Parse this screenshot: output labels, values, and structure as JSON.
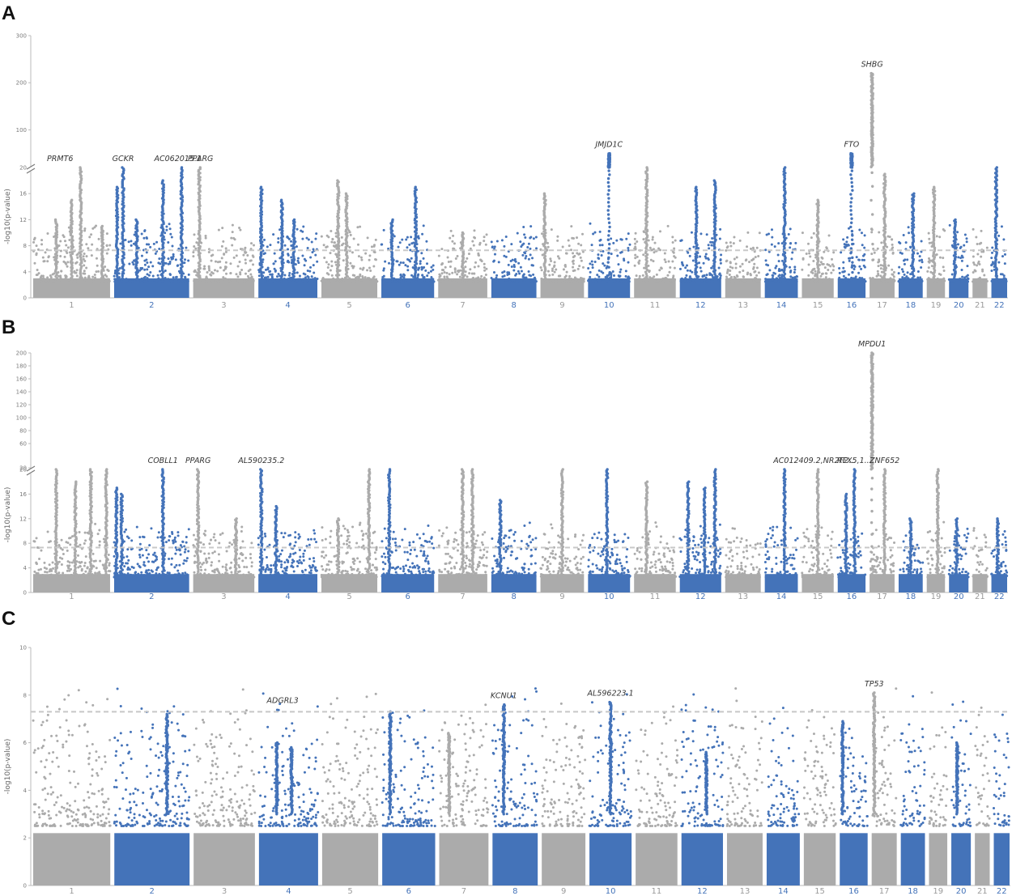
{
  "colors": {
    "blue": "#4473b9",
    "grey": "#ababab",
    "threshold": "#c8c8c8",
    "axis": "#bbbbbb"
  },
  "chart_data": [
    {
      "type": "scatter",
      "panel": "A",
      "ylabel": "-log10(p-value)",
      "axis_break": true,
      "yticks_lower": [
        "0",
        "4",
        "8",
        "12",
        "16",
        "20"
      ],
      "yticks_upper": [
        "100",
        "200",
        "300"
      ],
      "ylim_lower": [
        0,
        20
      ],
      "ylim_upper": [
        20,
        300
      ],
      "threshold": 7.3,
      "chromosomes": [
        "1",
        "2",
        "3",
        "4",
        "5",
        "6",
        "7",
        "8",
        "9",
        "10",
        "11",
        "12",
        "13",
        "14",
        "15",
        "16",
        "17",
        "18",
        "19",
        "20",
        "21",
        "22"
      ],
      "peaks": [
        {
          "chrom": 1,
          "pos": 0.3,
          "y": 12
        },
        {
          "chrom": 1,
          "pos": 0.5,
          "y": 15
        },
        {
          "chrom": 1,
          "pos": 0.62,
          "y": 20
        },
        {
          "chrom": 1,
          "pos": 0.9,
          "y": 11
        },
        {
          "chrom": 2,
          "pos": 0.04,
          "y": 17
        },
        {
          "chrom": 2,
          "pos": 0.12,
          "y": 20
        },
        {
          "chrom": 2,
          "pos": 0.3,
          "y": 12
        },
        {
          "chrom": 2,
          "pos": 0.65,
          "y": 18
        },
        {
          "chrom": 2,
          "pos": 0.9,
          "y": 20
        },
        {
          "chrom": 3,
          "pos": 0.1,
          "y": 20
        },
        {
          "chrom": 4,
          "pos": 0.05,
          "y": 17
        },
        {
          "chrom": 4,
          "pos": 0.4,
          "y": 15
        },
        {
          "chrom": 4,
          "pos": 0.6,
          "y": 12
        },
        {
          "chrom": 5,
          "pos": 0.3,
          "y": 18
        },
        {
          "chrom": 5,
          "pos": 0.45,
          "y": 16
        },
        {
          "chrom": 6,
          "pos": 0.2,
          "y": 12
        },
        {
          "chrom": 6,
          "pos": 0.65,
          "y": 17
        },
        {
          "chrom": 7,
          "pos": 0.5,
          "y": 10
        },
        {
          "chrom": 9,
          "pos": 0.1,
          "y": 16
        },
        {
          "chrom": 10,
          "pos": 0.5,
          "y": 50
        },
        {
          "chrom": 11,
          "pos": 0.3,
          "y": 20
        },
        {
          "chrom": 12,
          "pos": 0.4,
          "y": 17
        },
        {
          "chrom": 12,
          "pos": 0.85,
          "y": 18
        },
        {
          "chrom": 14,
          "pos": 0.6,
          "y": 20
        },
        {
          "chrom": 15,
          "pos": 0.5,
          "y": 15
        },
        {
          "chrom": 16,
          "pos": 0.5,
          "y": 50
        },
        {
          "chrom": 17,
          "pos": 0.1,
          "y": 220
        },
        {
          "chrom": 17,
          "pos": 0.6,
          "y": 19
        },
        {
          "chrom": 18,
          "pos": 0.6,
          "y": 16
        },
        {
          "chrom": 19,
          "pos": 0.4,
          "y": 17
        },
        {
          "chrom": 20,
          "pos": 0.3,
          "y": 12
        },
        {
          "chrom": 22,
          "pos": 0.3,
          "y": 20
        }
      ],
      "annotations": [
        {
          "label": "PRMT6",
          "chrom": 1,
          "pos": 0.35,
          "y": 20
        },
        {
          "label": "GCKR",
          "chrom": 2,
          "pos": 0.12,
          "y": 20
        },
        {
          "label": "AC062015.1",
          "chrom": 2,
          "pos": 0.85,
          "y": 20
        },
        {
          "label": "PPARG",
          "chrom": 3,
          "pos": 0.12,
          "y": 20
        },
        {
          "label": "JMJD1C",
          "chrom": 10,
          "pos": 0.5,
          "y": 50
        },
        {
          "label": "FTO",
          "chrom": 16,
          "pos": 0.5,
          "y": 50
        },
        {
          "label": "SHBG",
          "chrom": 17,
          "pos": 0.1,
          "y": 220
        }
      ]
    },
    {
      "type": "scatter",
      "panel": "B",
      "ylabel": "-log10(p-value)",
      "axis_break": true,
      "yticks_lower": [
        "0",
        "4",
        "8",
        "12",
        "16",
        "20"
      ],
      "yticks_upper": [
        "20",
        "60",
        "80",
        "100",
        "120",
        "140",
        "160",
        "180",
        "200"
      ],
      "ylim_lower": [
        0,
        20
      ],
      "ylim_upper": [
        20,
        200
      ],
      "threshold": 7.3,
      "chromosomes": [
        "1",
        "2",
        "3",
        "4",
        "5",
        "6",
        "7",
        "8",
        "9",
        "10",
        "11",
        "12",
        "13",
        "14",
        "15",
        "16",
        "17",
        "18",
        "19",
        "20",
        "21",
        "22"
      ],
      "peaks": [
        {
          "chrom": 1,
          "pos": 0.3,
          "y": 20
        },
        {
          "chrom": 1,
          "pos": 0.55,
          "y": 18
        },
        {
          "chrom": 1,
          "pos": 0.75,
          "y": 20
        },
        {
          "chrom": 1,
          "pos": 0.95,
          "y": 20
        },
        {
          "chrom": 2,
          "pos": 0.03,
          "y": 17
        },
        {
          "chrom": 2,
          "pos": 0.1,
          "y": 16
        },
        {
          "chrom": 2,
          "pos": 0.65,
          "y": 20
        },
        {
          "chrom": 3,
          "pos": 0.08,
          "y": 20
        },
        {
          "chrom": 3,
          "pos": 0.7,
          "y": 12
        },
        {
          "chrom": 4,
          "pos": 0.05,
          "y": 20
        },
        {
          "chrom": 4,
          "pos": 0.3,
          "y": 14
        },
        {
          "chrom": 5,
          "pos": 0.3,
          "y": 12
        },
        {
          "chrom": 5,
          "pos": 0.85,
          "y": 20
        },
        {
          "chrom": 6,
          "pos": 0.15,
          "y": 20
        },
        {
          "chrom": 7,
          "pos": 0.5,
          "y": 20
        },
        {
          "chrom": 7,
          "pos": 0.7,
          "y": 20
        },
        {
          "chrom": 8,
          "pos": 0.2,
          "y": 15
        },
        {
          "chrom": 9,
          "pos": 0.5,
          "y": 20
        },
        {
          "chrom": 10,
          "pos": 0.45,
          "y": 20
        },
        {
          "chrom": 11,
          "pos": 0.3,
          "y": 18
        },
        {
          "chrom": 12,
          "pos": 0.2,
          "y": 18
        },
        {
          "chrom": 12,
          "pos": 0.6,
          "y": 17
        },
        {
          "chrom": 12,
          "pos": 0.85,
          "y": 20
        },
        {
          "chrom": 14,
          "pos": 0.6,
          "y": 20
        },
        {
          "chrom": 15,
          "pos": 0.5,
          "y": 20
        },
        {
          "chrom": 16,
          "pos": 0.3,
          "y": 16
        },
        {
          "chrom": 16,
          "pos": 0.6,
          "y": 20
        },
        {
          "chrom": 17,
          "pos": 0.1,
          "y": 200
        },
        {
          "chrom": 17,
          "pos": 0.6,
          "y": 20
        },
        {
          "chrom": 18,
          "pos": 0.5,
          "y": 12
        },
        {
          "chrom": 19,
          "pos": 0.6,
          "y": 20
        },
        {
          "chrom": 20,
          "pos": 0.4,
          "y": 12
        },
        {
          "chrom": 22,
          "pos": 0.4,
          "y": 12
        }
      ],
      "annotations": [
        {
          "label": "COBLL1",
          "chrom": 2,
          "pos": 0.65,
          "y": 20
        },
        {
          "label": "PPARG",
          "chrom": 3,
          "pos": 0.08,
          "y": 20
        },
        {
          "label": "AL590235.2",
          "chrom": 4,
          "pos": 0.05,
          "y": 20
        },
        {
          "label": "AC012409.2,NR2F2...",
          "chrom": 15,
          "pos": 0.4,
          "y": 20
        },
        {
          "label": "RFX5,1...",
          "chrom": 16,
          "pos": 0.6,
          "y": 20
        },
        {
          "label": "MPDU1",
          "chrom": 17,
          "pos": 0.1,
          "y": 200
        },
        {
          "label": "ZNF652",
          "chrom": 17,
          "pos": 0.6,
          "y": 20
        }
      ]
    },
    {
      "type": "scatter",
      "panel": "C",
      "ylabel": "-log10(p-value)",
      "axis_break": false,
      "yticks": [
        "0",
        "2",
        "4",
        "6",
        "8",
        "10"
      ],
      "ylim": [
        0,
        10
      ],
      "threshold": 7.3,
      "chromosomes": [
        "1",
        "2",
        "3",
        "4",
        "5",
        "6",
        "7",
        "8",
        "9",
        "10",
        "11",
        "12",
        "13",
        "14",
        "15",
        "16",
        "17",
        "18",
        "19",
        "20",
        "21",
        "22"
      ],
      "peaks": [
        {
          "chrom": 2,
          "pos": 0.7,
          "y": 7.2
        },
        {
          "chrom": 4,
          "pos": 0.3,
          "y": 6.0
        },
        {
          "chrom": 4,
          "pos": 0.55,
          "y": 5.8
        },
        {
          "chrom": 6,
          "pos": 0.15,
          "y": 7.3
        },
        {
          "chrom": 7,
          "pos": 0.2,
          "y": 6.4
        },
        {
          "chrom": 8,
          "pos": 0.25,
          "y": 7.6
        },
        {
          "chrom": 10,
          "pos": 0.5,
          "y": 7.7
        },
        {
          "chrom": 12,
          "pos": 0.6,
          "y": 5.6
        },
        {
          "chrom": 16,
          "pos": 0.1,
          "y": 6.9
        },
        {
          "chrom": 17,
          "pos": 0.1,
          "y": 8.1
        },
        {
          "chrom": 20,
          "pos": 0.3,
          "y": 6.0
        }
      ],
      "annotations": [
        {
          "label": "ADGRL3",
          "chrom": 4,
          "pos": 0.4,
          "y": 7.4
        },
        {
          "label": "KCNU1",
          "chrom": 8,
          "pos": 0.25,
          "y": 7.6
        },
        {
          "label": "AL596223.1",
          "chrom": 10,
          "pos": 0.5,
          "y": 7.7
        },
        {
          "label": "TP53",
          "chrom": 17,
          "pos": 0.1,
          "y": 8.1
        }
      ]
    }
  ]
}
